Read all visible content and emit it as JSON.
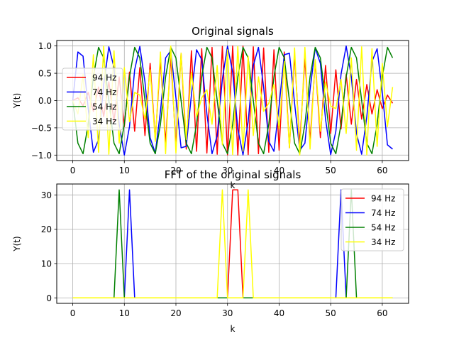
{
  "figure": {
    "background": "#ffffff"
  },
  "chart_data": [
    {
      "type": "line",
      "title": "Original signals",
      "xlabel": "k",
      "ylabel": "Y(t)",
      "xlim": [
        -3.1,
        65.1
      ],
      "ylim": [
        -1.1,
        1.1
      ],
      "xticks": [
        0,
        10,
        20,
        30,
        40,
        50,
        60
      ],
      "yticks": [
        -1.0,
        -0.5,
        0.0,
        0.5,
        1.0
      ],
      "ytick_labels": [
        "−1.0",
        "−0.5",
        "0.0",
        "0.5",
        "1.0"
      ],
      "grid": true,
      "legend_position": "upper-left",
      "signal_frequencies": [
        94,
        74,
        54,
        34
      ],
      "sample_count": 63,
      "series": [
        {
          "name": "94 Hz",
          "color": "#ff0000"
        },
        {
          "name": "74 Hz",
          "color": "#0000ff"
        },
        {
          "name": "54 Hz",
          "color": "#008000"
        },
        {
          "name": "34 Hz",
          "color": "#ffff00"
        }
      ]
    },
    {
      "type": "line",
      "title": "FFT of the original signals",
      "xlabel": "k",
      "ylabel": "Y(t)",
      "xlim": [
        -3.1,
        65.1
      ],
      "ylim": [
        -1.6,
        33.2
      ],
      "xticks": [
        0,
        10,
        20,
        30,
        40,
        50,
        60
      ],
      "yticks": [
        0,
        10,
        20,
        30
      ],
      "ytick_labels": [
        "0",
        "10",
        "20",
        "30"
      ],
      "grid": true,
      "legend_position": "upper-right",
      "series": [
        {
          "name": "94 Hz",
          "color": "#ff0000"
        },
        {
          "name": "74 Hz",
          "color": "#0000ff"
        },
        {
          "name": "54 Hz",
          "color": "#008000"
        },
        {
          "name": "34 Hz",
          "color": "#ffff00"
        }
      ]
    }
  ]
}
